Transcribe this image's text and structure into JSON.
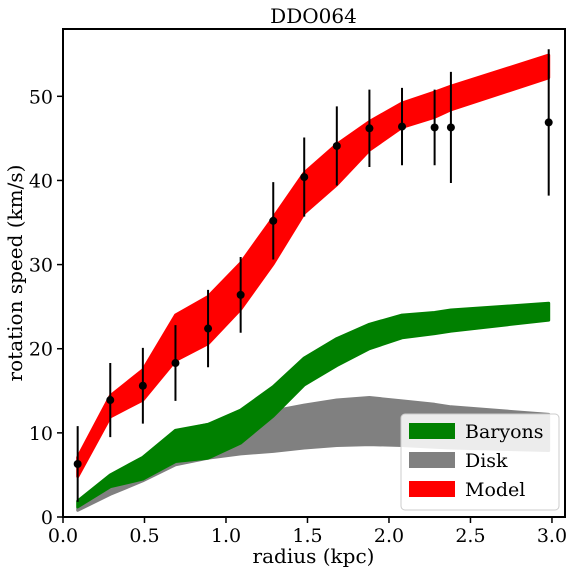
{
  "chart_data": {
    "type": "area",
    "title": "DDO064",
    "xlabel": "radius (kpc)",
    "ylabel": "rotation speed (km/s)",
    "xlim": [
      0.0,
      3.08
    ],
    "ylim": [
      0,
      58
    ],
    "xticks": [
      0.0,
      0.5,
      1.0,
      1.5,
      2.0,
      2.5,
      3.0
    ],
    "xtick_labels": [
      "0.0",
      "0.5",
      "1.0",
      "1.5",
      "2.0",
      "2.5",
      "3.0"
    ],
    "yticks": [
      0,
      10,
      20,
      30,
      40,
      50
    ],
    "ytick_labels": [
      "0",
      "10",
      "20",
      "30",
      "40",
      "50"
    ],
    "grid": false,
    "legend_position": "bottom-right",
    "series": [
      {
        "name": "Disk",
        "kind": "band",
        "color": "#808080",
        "x": [
          0.09,
          0.29,
          0.49,
          0.69,
          0.89,
          1.09,
          1.29,
          1.48,
          1.68,
          1.88,
          2.08,
          2.28,
          2.38,
          2.98
        ],
        "lower": [
          0.8,
          2.7,
          4.3,
          6.2,
          7.0,
          7.5,
          7.8,
          8.2,
          8.5,
          8.6,
          8.5,
          8.3,
          8.2,
          7.9
        ],
        "upper": [
          1.1,
          3.8,
          5.8,
          10.2,
          11.0,
          11.8,
          12.6,
          13.3,
          13.9,
          14.2,
          13.8,
          13.4,
          13.1,
          12.2
        ]
      },
      {
        "name": "Baryons",
        "kind": "band",
        "color": "#008000",
        "x": [
          0.09,
          0.29,
          0.49,
          0.69,
          0.89,
          1.09,
          1.29,
          1.48,
          1.68,
          1.88,
          2.08,
          2.28,
          2.38,
          2.98
        ],
        "lower": [
          1.2,
          3.6,
          4.5,
          6.6,
          7.0,
          8.8,
          12.0,
          15.7,
          18.0,
          20.0,
          21.3,
          21.8,
          22.1,
          23.4
        ],
        "upper": [
          1.9,
          5.0,
          7.1,
          10.3,
          11.0,
          12.7,
          15.5,
          18.9,
          21.2,
          22.9,
          24.0,
          24.3,
          24.6,
          25.4
        ]
      },
      {
        "name": "Model",
        "kind": "band",
        "color": "#ff0000",
        "x": [
          0.09,
          0.29,
          0.49,
          0.69,
          0.89,
          1.09,
          1.29,
          1.48,
          1.68,
          1.88,
          2.08,
          2.28,
          2.38,
          2.98
        ],
        "lower": [
          4.8,
          11.9,
          13.9,
          18.6,
          20.6,
          24.7,
          30.1,
          36.1,
          39.5,
          43.6,
          46.3,
          47.5,
          48.4,
          52.2
        ],
        "upper": [
          7.1,
          14.4,
          17.5,
          24.0,
          26.2,
          30.2,
          35.6,
          40.9,
          44.3,
          47.0,
          49.2,
          50.5,
          51.2,
          54.9
        ]
      },
      {
        "name": "",
        "kind": "errorbar",
        "color": "#000000",
        "x": [
          0.09,
          0.29,
          0.49,
          0.69,
          0.89,
          1.09,
          1.29,
          1.48,
          1.68,
          1.88,
          2.08,
          2.28,
          2.38,
          2.98
        ],
        "y": [
          6.3,
          13.9,
          15.6,
          18.3,
          22.4,
          26.4,
          35.2,
          40.4,
          44.1,
          46.2,
          46.4,
          46.3,
          46.3,
          46.9
        ],
        "yerr": [
          4.5,
          4.4,
          4.5,
          4.5,
          4.6,
          4.5,
          4.6,
          4.7,
          4.7,
          4.6,
          4.6,
          4.5,
          6.6,
          8.7
        ]
      }
    ],
    "legend": [
      {
        "label": "Baryons",
        "color": "#008000"
      },
      {
        "label": "Disk",
        "color": "#808080"
      },
      {
        "label": "Model",
        "color": "#ff0000"
      }
    ]
  }
}
